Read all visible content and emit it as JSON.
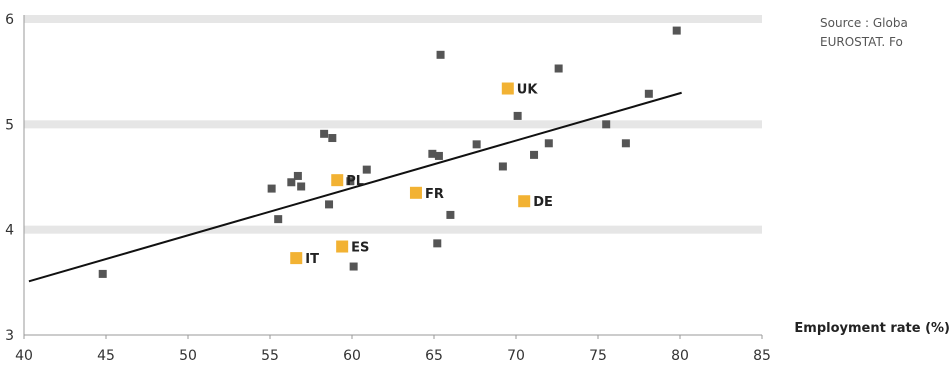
{
  "source": {
    "line1": "Source : Globa",
    "line2": "EUROSTAT. Fo"
  },
  "chart_data": {
    "type": "scatter",
    "xlabel": "Employment rate (%)",
    "ylabel": "",
    "xlim": [
      40,
      85
    ],
    "ylim": [
      3,
      6
    ],
    "xticks": [
      40,
      45,
      50,
      55,
      60,
      65,
      70,
      75,
      80,
      85
    ],
    "yticks": [
      3,
      4,
      5,
      6
    ],
    "grid": "horizontal bands at y ticks",
    "colors": {
      "point": "#555555",
      "highlight": "#f2b233",
      "trend": "#111111",
      "band": "#e6e6e6"
    },
    "points": [
      {
        "x": 44.8,
        "y": 3.58
      },
      {
        "x": 55.1,
        "y": 4.39
      },
      {
        "x": 55.5,
        "y": 4.1
      },
      {
        "x": 56.3,
        "y": 4.45
      },
      {
        "x": 56.7,
        "y": 4.51
      },
      {
        "x": 56.9,
        "y": 4.41
      },
      {
        "x": 58.3,
        "y": 4.91
      },
      {
        "x": 58.8,
        "y": 4.87
      },
      {
        "x": 58.6,
        "y": 4.24
      },
      {
        "x": 59.9,
        "y": 4.46
      },
      {
        "x": 60.1,
        "y": 3.65
      },
      {
        "x": 60.9,
        "y": 4.57
      },
      {
        "x": 64.9,
        "y": 4.72
      },
      {
        "x": 65.2,
        "y": 3.87
      },
      {
        "x": 65.3,
        "y": 4.7
      },
      {
        "x": 65.4,
        "y": 5.66
      },
      {
        "x": 66.0,
        "y": 4.14
      },
      {
        "x": 67.6,
        "y": 4.81
      },
      {
        "x": 69.2,
        "y": 4.6
      },
      {
        "x": 70.1,
        "y": 5.08
      },
      {
        "x": 71.1,
        "y": 4.71
      },
      {
        "x": 72.0,
        "y": 4.82
      },
      {
        "x": 72.6,
        "y": 5.53
      },
      {
        "x": 75.5,
        "y": 5.0
      },
      {
        "x": 76.7,
        "y": 4.82
      },
      {
        "x": 78.1,
        "y": 5.29
      },
      {
        "x": 79.8,
        "y": 5.89
      }
    ],
    "highlighted": [
      {
        "label": "UK",
        "x": 69.5,
        "y": 5.34
      },
      {
        "label": "PL",
        "x": 59.1,
        "y": 4.47
      },
      {
        "label": "FR",
        "x": 63.9,
        "y": 4.35
      },
      {
        "label": "DE",
        "x": 70.5,
        "y": 4.27
      },
      {
        "label": "ES",
        "x": 59.4,
        "y": 3.84
      },
      {
        "label": "IT",
        "x": 56.6,
        "y": 3.73
      }
    ],
    "trendline": {
      "x": [
        40.3,
        80.1
      ],
      "y": [
        3.51,
        5.3
      ]
    }
  }
}
